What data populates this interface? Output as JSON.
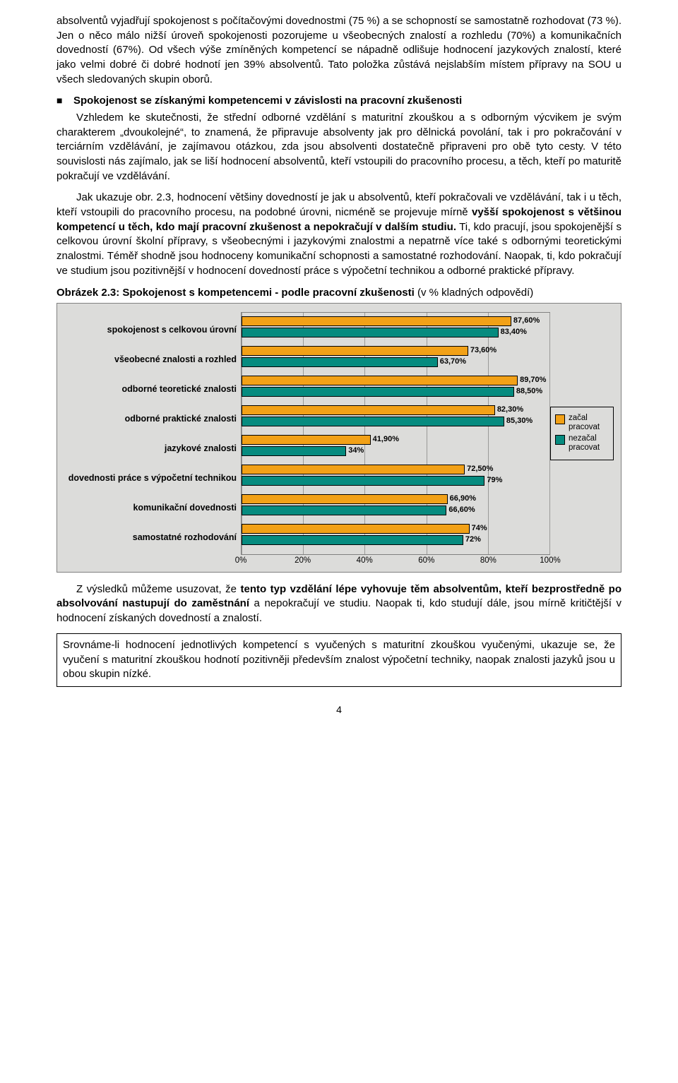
{
  "paragraphs": {
    "p1": "absolventů vyjadřují spokojenost s počítačovými dovednostmi (75 %) a se schopností se samostatně rozhodovat (73 %). Jen o něco málo nižší úroveň spokojenosti pozorujeme u všeobecných znalostí a rozhledu (70%) a komunikačních dovedností (67%). Od všech výše zmíněných kompetencí se nápadně odlišuje hodnocení jazykových znalostí, které jako velmi dobré či dobré hodnotí jen 39% absolventů. Tato položka zůstává nejslabším místem přípravy na SOU u všech sledovaných skupin oborů.",
    "bullet": "Spokojenost se získanými kompetencemi v závislosti na pracovní zkušenosti",
    "p2": "Vzhledem ke skutečnosti, že střední odborné vzdělání s maturitní zkouškou a s odborným výcvikem je svým charakterem „dvoukolejné“, to znamená, že připravuje absolventy jak pro dělnická povolání, tak i pro pokračování v terciárním vzdělávání, je zajímavou otázkou, zda jsou absolventi dostatečně připraveni pro obě tyto cesty. V této souvislosti nás zajímalo, jak se liší hodnocení absolventů, kteří vstoupili do pracovního procesu, a těch, kteří po maturitě pokračují ve vzdělávání.",
    "p3_pre": "Jak ukazuje obr. 2.3, hodnocení většiny dovedností je jak u absolventů, kteří pokračovali ve vzdělávání, tak i u těch, kteří vstoupili do pracovního procesu, na podobné úrovni, nicméně se projevuje mírně ",
    "p3_b": "vyšší spokojenost s většinou kompetencí u těch, kdo mají pracovní zkušenost a nepokračují v dalším studiu.",
    "p3_post": " Ti, kdo pracují, jsou spokojenější s celkovou úrovní školní přípravy, s všeobecnými i jazykovými znalostmi a nepatrně více také s odbornými teoretickými znalostmi. Téměř shodně jsou hodnoceny komunikační schopnosti a samostatné rozhodování. Naopak, ti, kdo pokračují ve studium jsou pozitivnější v hodnocení dovedností práce s výpočetní technikou a odborné praktické přípravy.",
    "caption_b": "Obrázek 2.3: Spokojenost s kompetencemi - podle pracovní zkušenosti ",
    "caption_rest": "(v % kladných odpovědí)",
    "p4_pre": "Z výsledků můžeme usuzovat, že ",
    "p4_b": "tento typ vzdělání lépe vyhovuje těm absolventům, kteří bezprostředně po absolvování nastupují do zaměstnání",
    "p4_post": " a nepokračují ve studiu. Naopak ti, kdo studují dále, jsou mírně kritičtější v hodnocení získaných dovedností a znalostí.",
    "boxed": "Srovnáme-li hodnocení jednotlivých kompetencí s vyučených s maturitní zkouškou vyučenými, ukazuje se, že vyučení s maturitní zkouškou hodnotí pozitivněji především znalost výpočetní techniky, naopak znalosti jazyků jsou u obou skupin nízké."
  },
  "chart": {
    "type": "bar",
    "xlim": [
      0,
      100
    ],
    "xtick_step": 20,
    "xticks": [
      "0%",
      "20%",
      "40%",
      "60%",
      "80%",
      "100%"
    ],
    "bar_color_a": "#f2a117",
    "bar_color_b": "#068b7f",
    "background_color": "#dcdcda",
    "grid_color": "#9a9a98",
    "border_color": "#808080",
    "label_fontsize": 12.5,
    "value_fontsize": 11,
    "categories": [
      {
        "label": "spokojenost s celkovou úrovní",
        "a": 87.6,
        "a_label": "87,60%",
        "b": 83.4,
        "b_label": "83,40%"
      },
      {
        "label": "všeobecné znalosti a rozhled",
        "a": 73.6,
        "a_label": "73,60%",
        "b": 63.7,
        "b_label": "63,70%"
      },
      {
        "label": "odborné teoretické znalosti",
        "a": 89.7,
        "a_label": "89,70%",
        "b": 88.5,
        "b_label": "88,50%"
      },
      {
        "label": "odborné praktické znalosti",
        "a": 82.3,
        "a_label": "82,30%",
        "b": 85.3,
        "b_label": "85,30%"
      },
      {
        "label": "jazykové znalosti",
        "a": 41.9,
        "a_label": "41,90%",
        "b": 34.0,
        "b_label": "34%"
      },
      {
        "label": "dovednosti práce s výpočetní technikou",
        "a": 72.5,
        "a_label": "72,50%",
        "b": 79.0,
        "b_label": "79%"
      },
      {
        "label": "komunikační dovednosti",
        "a": 66.9,
        "a_label": "66,90%",
        "b": 66.6,
        "b_label": "66,60%"
      },
      {
        "label": "samostatné rozhodování",
        "a": 74.0,
        "a_label": "74%",
        "b": 72.0,
        "b_label": "72%"
      }
    ],
    "legend": {
      "a": "začal pracovat",
      "b": "nezačal pracovat"
    }
  },
  "pagenum": "4"
}
